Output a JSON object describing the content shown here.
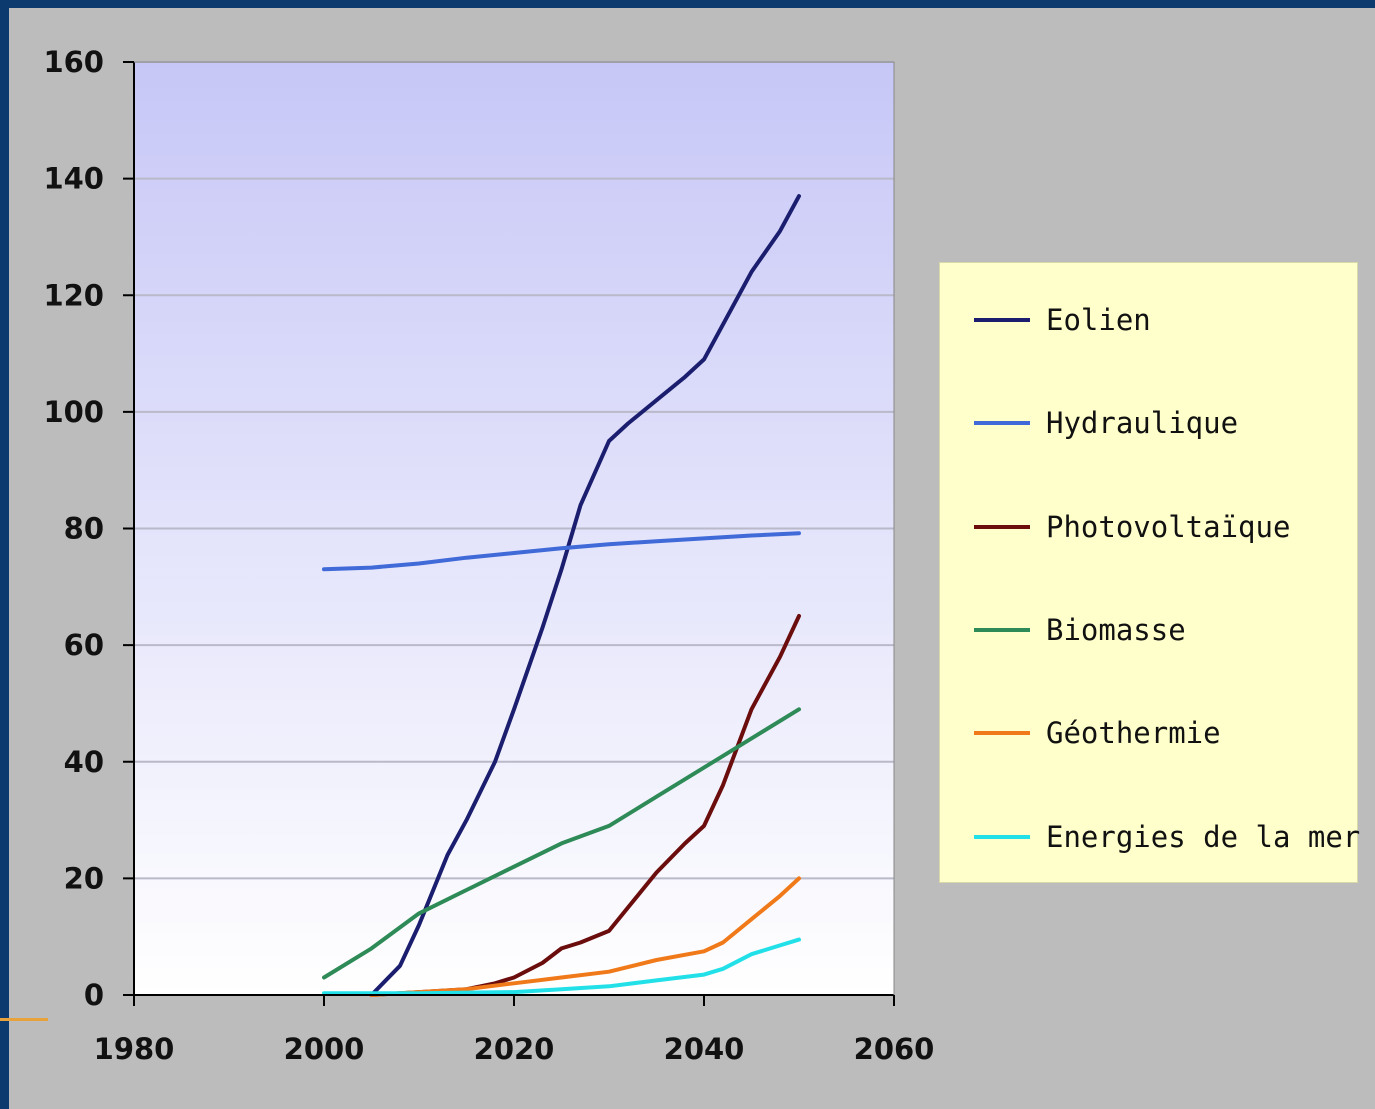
{
  "chart_data": {
    "type": "line",
    "title": "",
    "xlabel": "",
    "ylabel": "",
    "xlim": [
      1980,
      2060
    ],
    "ylim": [
      0,
      160
    ],
    "xticks": [
      1980,
      2000,
      2020,
      2040,
      2060
    ],
    "yticks": [
      0,
      20,
      40,
      60,
      80,
      100,
      120,
      140,
      160
    ],
    "grid": "horizontal",
    "legend_position": "right",
    "series": [
      {
        "name": "Eolien",
        "color": "#1b1e6e",
        "x": [
          2005,
          2008,
          2010,
          2013,
          2015,
          2018,
          2020,
          2023,
          2025,
          2027,
          2030,
          2032,
          2035,
          2038,
          2040,
          2043,
          2045,
          2048,
          2050
        ],
        "y": [
          0,
          5,
          12,
          24,
          30,
          40,
          49,
          63,
          73,
          84,
          95,
          98,
          102,
          106,
          109,
          118,
          124,
          131,
          137
        ]
      },
      {
        "name": "Hydraulique",
        "color": "#3f6ad8",
        "x": [
          2000,
          2005,
          2010,
          2015,
          2020,
          2025,
          2030,
          2035,
          2040,
          2045,
          2050
        ],
        "y": [
          73,
          73.3,
          74,
          75,
          75.8,
          76.6,
          77.3,
          77.8,
          78.3,
          78.8,
          79.2
        ]
      },
      {
        "name": "Photovoltaïque",
        "color": "#6b0d0d",
        "x": [
          2005,
          2010,
          2015,
          2018,
          2020,
          2023,
          2025,
          2027,
          2030,
          2032,
          2035,
          2038,
          2040,
          2042,
          2045,
          2048,
          2050
        ],
        "y": [
          0,
          0.5,
          1,
          2,
          3,
          5.5,
          8,
          9,
          11,
          15,
          21,
          26,
          29,
          36,
          49,
          58,
          65
        ]
      },
      {
        "name": "Biomasse",
        "color": "#2e8b57",
        "x": [
          2000,
          2005,
          2010,
          2015,
          2020,
          2025,
          2030,
          2035,
          2040,
          2045,
          2050
        ],
        "y": [
          3,
          8,
          14,
          18,
          22,
          26,
          29,
          34,
          39,
          44,
          49
        ]
      },
      {
        "name": "Géothermie",
        "color": "#f07a1a",
        "x": [
          2005,
          2010,
          2015,
          2020,
          2025,
          2030,
          2035,
          2040,
          2042,
          2045,
          2048,
          2050
        ],
        "y": [
          0,
          0.5,
          1,
          2,
          3,
          4,
          6,
          7.5,
          9,
          13,
          17,
          20
        ]
      },
      {
        "name": "Energies de la mer",
        "color": "#22e0e8",
        "x": [
          2000,
          2010,
          2020,
          2025,
          2030,
          2035,
          2040,
          2042,
          2045,
          2048,
          2050
        ],
        "y": [
          0.3,
          0.3,
          0.5,
          1,
          1.5,
          2.5,
          3.5,
          4.5,
          7,
          8.5,
          9.5
        ]
      }
    ]
  }
}
